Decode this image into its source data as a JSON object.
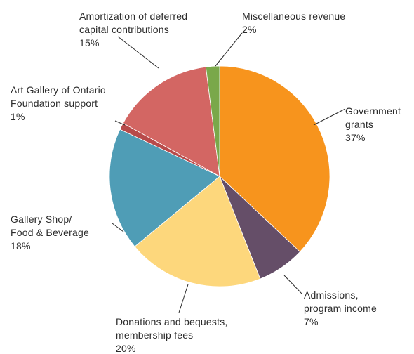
{
  "chart_data": {
    "type": "pie",
    "title": "",
    "slices": [
      {
        "label_lines": [
          "Government",
          "grants"
        ],
        "percent_text": "37%",
        "value": 37,
        "color": "#f7941d"
      },
      {
        "label_lines": [
          "Admissions,",
          "program income"
        ],
        "percent_text": "7%",
        "value": 7,
        "color": "#654e68"
      },
      {
        "label_lines": [
          "Donations and bequests,",
          "membership fees"
        ],
        "percent_text": "20%",
        "value": 20,
        "color": "#fdd77c"
      },
      {
        "label_lines": [
          "Gallery Shop/",
          "Food & Beverage"
        ],
        "percent_text": "18%",
        "value": 18,
        "color": "#4f9db6"
      },
      {
        "label_lines": [
          "Art Gallery of Ontario",
          "Foundation support"
        ],
        "percent_text": "1%",
        "value": 1,
        "color": "#b84a4a"
      },
      {
        "label_lines": [
          "Amortization of deferred",
          "capital contributions"
        ],
        "percent_text": "15%",
        "value": 15,
        "color": "#d36663"
      },
      {
        "label_lines": [
          "Miscellaneous revenue"
        ],
        "percent_text": "2%",
        "value": 2,
        "color": "#7aa84a"
      }
    ]
  }
}
